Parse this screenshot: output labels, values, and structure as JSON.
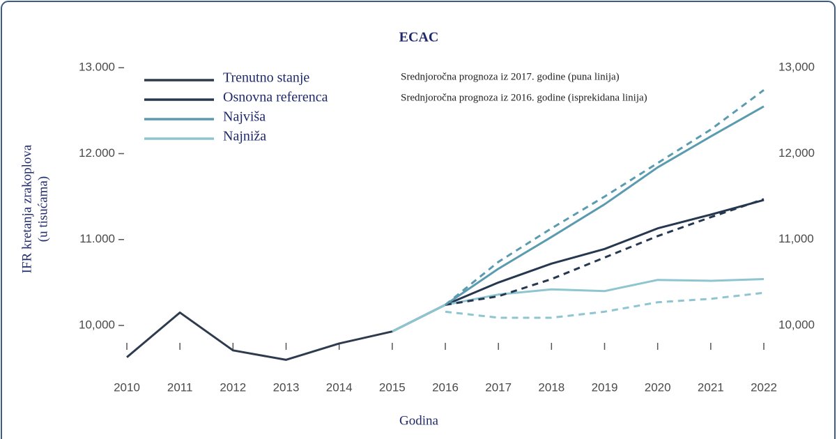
{
  "chart_data": {
    "type": "line",
    "title": "ECAC",
    "ylabel": [
      "IFR kretanja zrakoplova",
      "(u tisućama)"
    ],
    "xlabel": "Godina",
    "annotations": [
      "Srednjoročna prognoza iz 2017. godine (puna linija)",
      "Srednjoročna prognoza iz 2016. godine (isprekidana linija)"
    ],
    "x": [
      2010,
      2011,
      2012,
      2013,
      2014,
      2015,
      2016,
      2017,
      2018,
      2019,
      2020,
      2021,
      2022
    ],
    "xlim": [
      2010,
      2022
    ],
    "xticks": [
      2010,
      2011,
      2012,
      2013,
      2014,
      2015,
      2016,
      2017,
      2018,
      2019,
      2020,
      2021,
      2022
    ],
    "ylim": [
      9500,
      13050
    ],
    "yticks": [
      {
        "value": 10000,
        "label": "10,000"
      },
      {
        "value": 11000,
        "label": "11.000"
      },
      {
        "value": 12000,
        "label": "12.000"
      },
      {
        "value": 13000,
        "label": "13.000"
      }
    ],
    "y2lim": [
      9500,
      13050
    ],
    "y2ticks": [
      {
        "value": 10000,
        "label": "10,000"
      },
      {
        "value": 11000,
        "label": "11,000"
      },
      {
        "value": 12000,
        "label": "12,000"
      },
      {
        "value": 13000,
        "label": "13,000"
      }
    ],
    "series": [
      {
        "name": "Trenutno stanje",
        "color": "#2e3b4e",
        "values": [
          9630,
          10150,
          9710,
          9600,
          9790,
          9930,
          10240,
          null,
          null,
          null,
          null,
          null,
          null
        ]
      },
      {
        "name": "Osnovna referenca",
        "color": "#263750",
        "values": [
          null,
          null,
          null,
          null,
          null,
          9930,
          10240,
          10500,
          10720,
          10890,
          11130,
          11290,
          11460
        ]
      },
      {
        "name": "Najviša",
        "color": "#5b9bb0",
        "values": [
          null,
          null,
          null,
          null,
          null,
          9930,
          10240,
          10660,
          11030,
          11410,
          11840,
          12200,
          12550
        ]
      },
      {
        "name": "Najniža",
        "color": "#8ec5d0",
        "values": [
          null,
          null,
          null,
          null,
          null,
          9930,
          10240,
          10360,
          10420,
          10400,
          10530,
          10520,
          10540
        ]
      },
      {
        "color": "#263750",
        "dashed": true,
        "values": [
          null,
          null,
          null,
          null,
          null,
          null,
          10240,
          10340,
          10540,
          10790,
          11040,
          11260,
          11470
        ]
      },
      {
        "color": "#5b9bb0",
        "dashed": true,
        "values": [
          null,
          null,
          null,
          null,
          null,
          null,
          10240,
          10740,
          11130,
          11500,
          11890,
          12280,
          12740
        ]
      },
      {
        "color": "#8ec5d0",
        "dashed": true,
        "values": [
          null,
          null,
          null,
          null,
          null,
          null,
          10160,
          10090,
          10090,
          10160,
          10270,
          10310,
          10380
        ]
      }
    ]
  }
}
